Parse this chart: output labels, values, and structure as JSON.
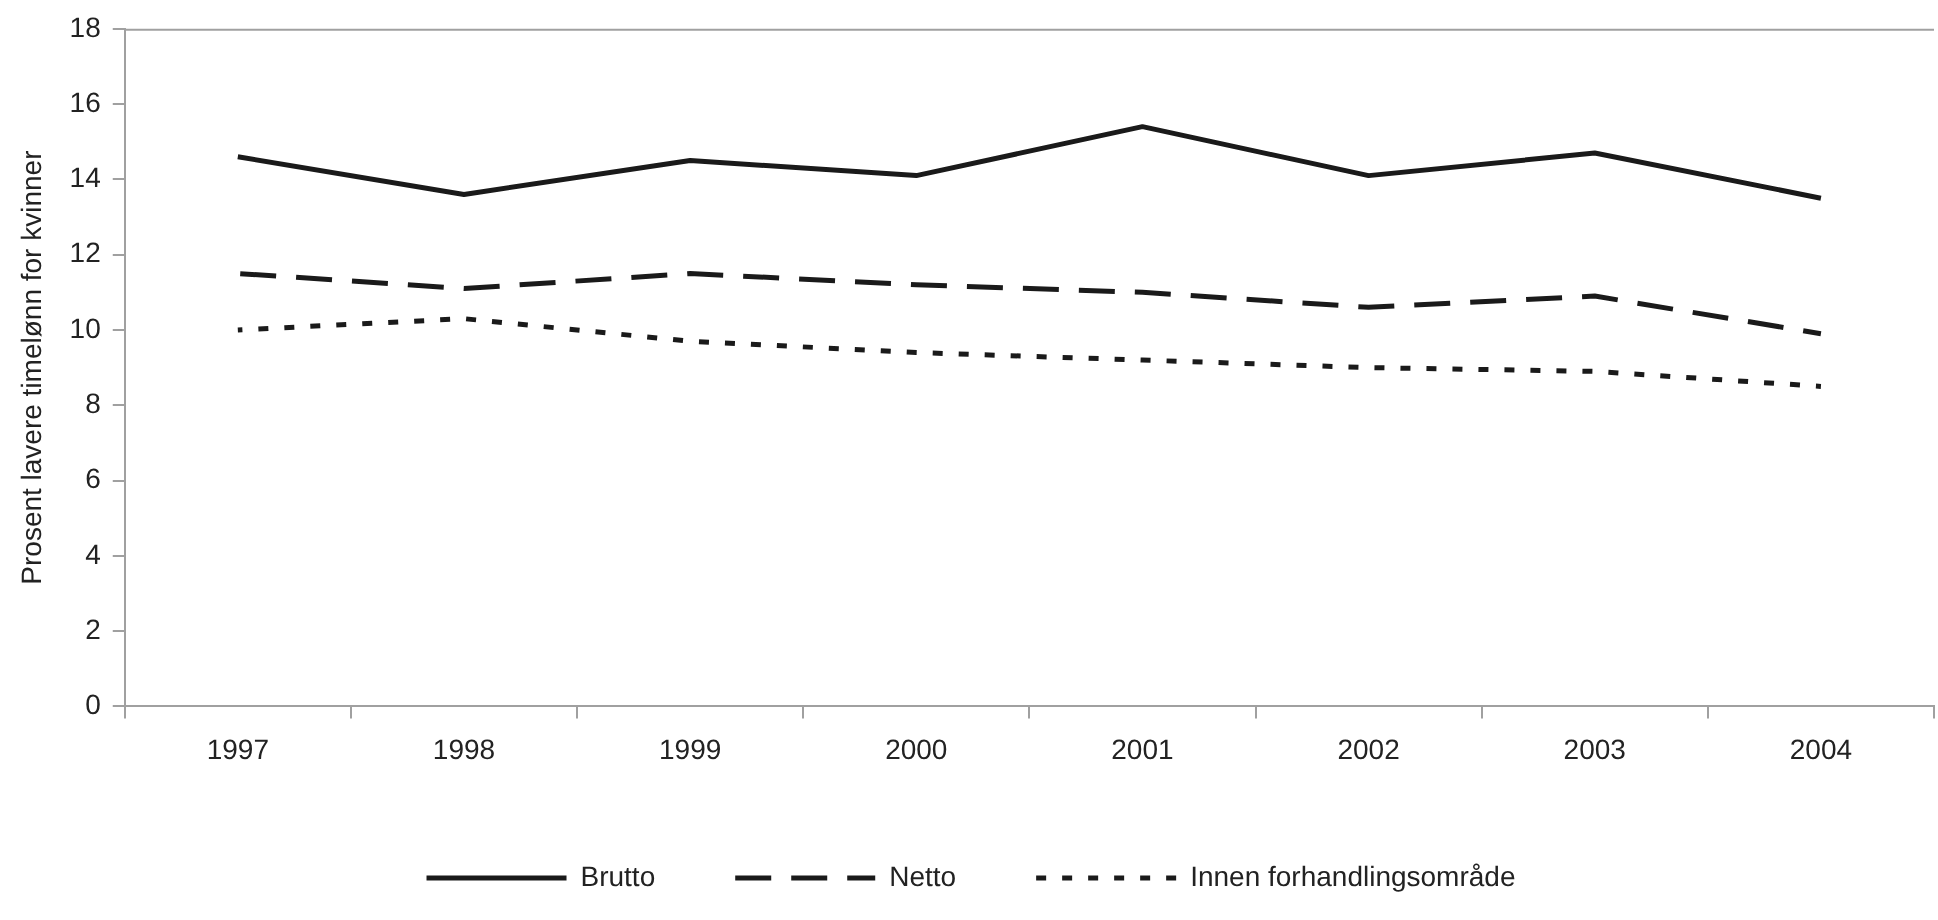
{
  "chart_data": {
    "type": "line",
    "ylabel": "Prosent lavere timelønn for kvinner",
    "categories": [
      "1997",
      "1998",
      "1999",
      "2000",
      "2001",
      "2002",
      "2003",
      "2004"
    ],
    "series": [
      {
        "name": "Brutto",
        "color": "#1a1a1a",
        "line_style": "solid",
        "values": [
          14.6,
          13.6,
          14.5,
          14.1,
          15.4,
          14.1,
          14.7,
          13.5
        ]
      },
      {
        "name": "Netto",
        "color": "#1a1a1a",
        "line_style": "dashed",
        "values": [
          11.5,
          11.1,
          11.5,
          11.2,
          11.0,
          10.6,
          10.9,
          9.9
        ]
      },
      {
        "name": "Innen forhandlingsområde",
        "color": "#1a1a1a",
        "line_style": "dotted",
        "values": [
          10.0,
          10.3,
          9.7,
          9.4,
          9.2,
          9.0,
          8.9,
          8.5
        ]
      }
    ],
    "ylim": [
      0,
      18
    ],
    "yticks": [
      0,
      2,
      4,
      6,
      8,
      10,
      12,
      14,
      16,
      18
    ],
    "grid": false,
    "legend": "bottom",
    "marker": "none"
  }
}
